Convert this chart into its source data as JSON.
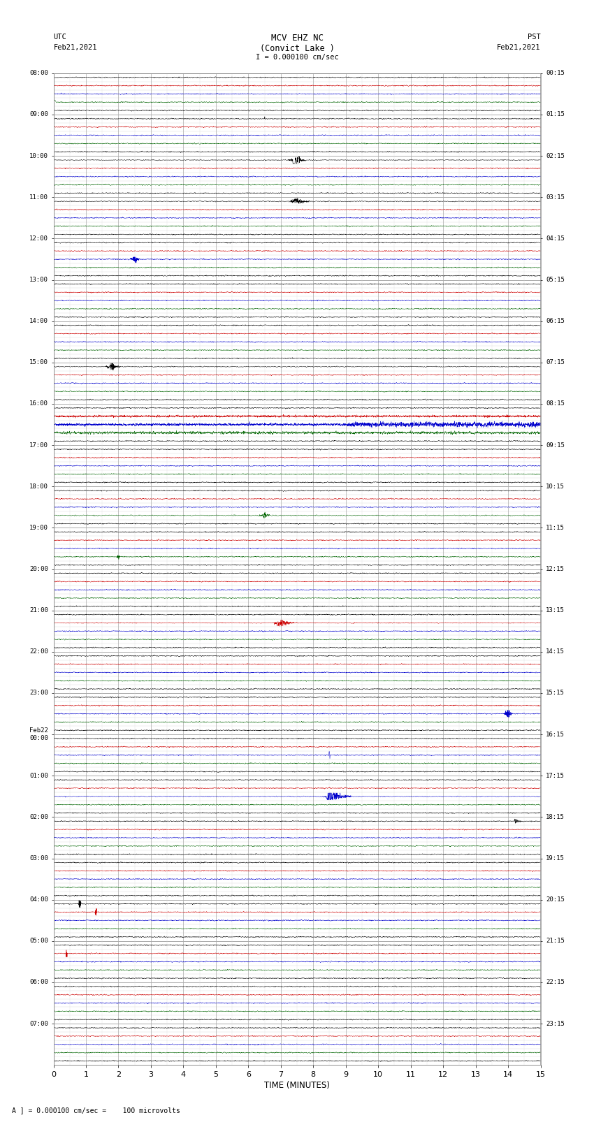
{
  "title_line1": "MCV EHZ NC",
  "title_line2": "(Convict Lake )",
  "scale_text": "I = 0.000100 cm/sec",
  "left_label_line1": "UTC",
  "left_label_line2": "Feb21,2021",
  "right_label_line1": "PST",
  "right_label_line2": "Feb21,2021",
  "bottom_label": "A ] = 0.000100 cm/sec =    100 microvolts",
  "xlabel": "TIME (MINUTES)",
  "left_times": [
    "08:00",
    "09:00",
    "10:00",
    "11:00",
    "12:00",
    "13:00",
    "14:00",
    "15:00",
    "16:00",
    "17:00",
    "18:00",
    "19:00",
    "20:00",
    "21:00",
    "22:00",
    "23:00",
    "Feb22\n00:00",
    "01:00",
    "02:00",
    "03:00",
    "04:00",
    "05:00",
    "06:00",
    "07:00"
  ],
  "right_times": [
    "00:15",
    "01:15",
    "02:15",
    "03:15",
    "04:15",
    "05:15",
    "06:15",
    "07:15",
    "08:15",
    "09:15",
    "10:15",
    "11:15",
    "12:15",
    "13:15",
    "14:15",
    "15:15",
    "16:15",
    "17:15",
    "18:15",
    "19:15",
    "20:15",
    "21:15",
    "22:15",
    "23:15"
  ],
  "n_rows": 24,
  "sub_traces_per_row": 5,
  "x_min": 0,
  "x_max": 15,
  "x_ticks": [
    0,
    1,
    2,
    3,
    4,
    5,
    6,
    7,
    8,
    9,
    10,
    11,
    12,
    13,
    14,
    15
  ],
  "bg_color": "#ffffff",
  "grid_color": "#aaaaaa",
  "seed": 42,
  "colors_cycle": [
    "#000000",
    "#cc0000",
    "#0000cc",
    "#006400"
  ],
  "lw": 0.35
}
